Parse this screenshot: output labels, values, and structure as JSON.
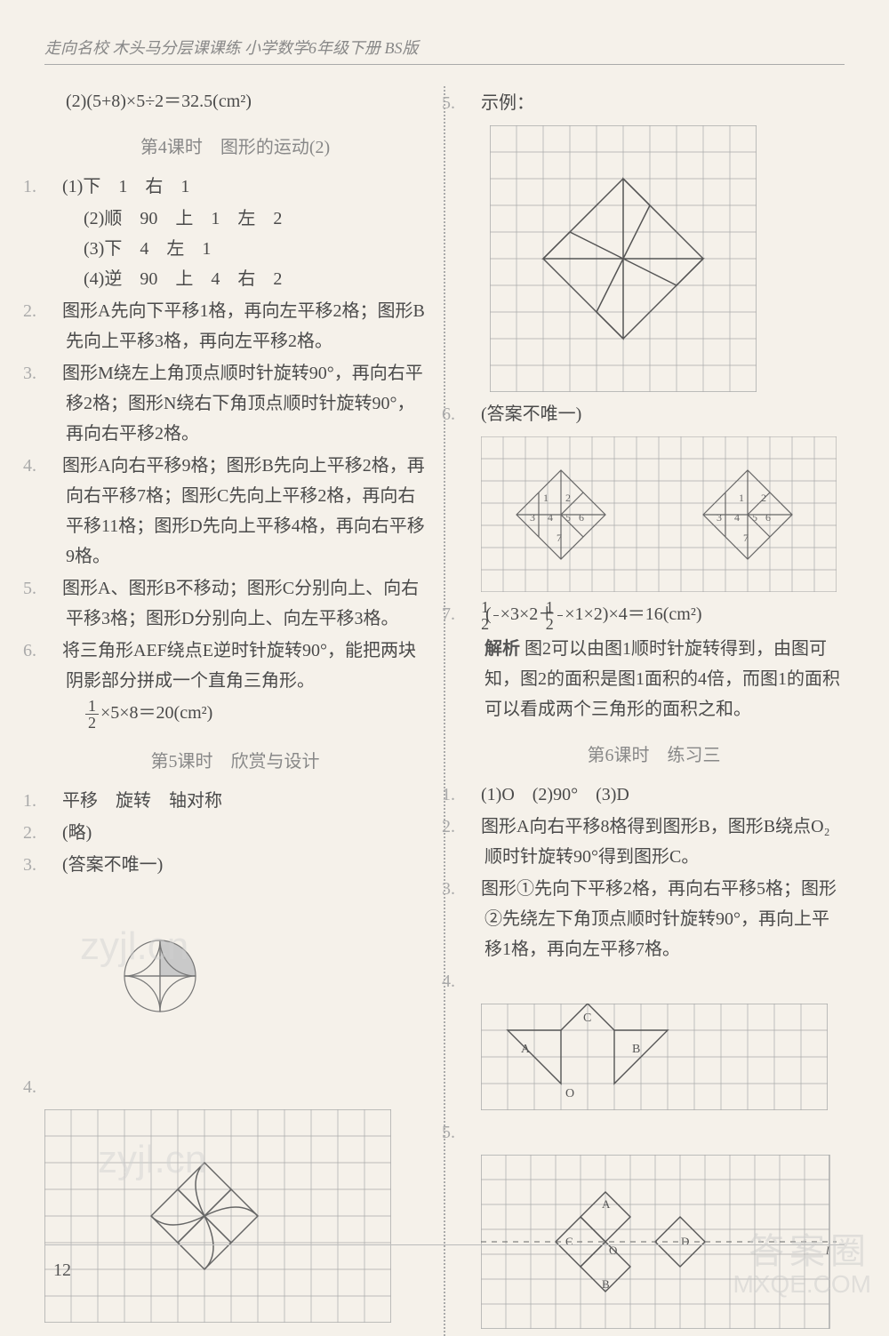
{
  "header": {
    "title": "走向名校  木头马分层课课练  小学数学6年级下册  BS版"
  },
  "left": {
    "line_top": "(2)(5+8)×5÷2＝32.5(cm²)",
    "sec4_title": "第4课时　图形的运动(2)",
    "q1": {
      "a": "(1)下　1　右　1",
      "b": "(2)顺　90　上　1　左　2",
      "c": "(3)下　4　左　1",
      "d": "(4)逆　90　上　4　右　2"
    },
    "q2": "图形A先向下平移1格，再向左平移2格；图形B先向上平移3格，再向左平移2格。",
    "q3": "图形M绕左上角顶点顺时针旋转90°，再向右平移2格；图形N绕右下角顶点顺时针旋转90°，再向右平移2格。",
    "q4": "图形A向右平移9格；图形B先向上平移2格，再向右平移7格；图形C先向上平移2格，再向右平移11格；图形D先向上平移4格，再向右平移9格。",
    "q5": "图形A、图形B不移动；图形C分别向上、向右平移3格；图形D分别向上、向左平移3格。",
    "q6": "将三角形AEF绕点E逆时针旋转90°，能把两块阴影部分拼成一个直角三角形。",
    "q6_eq_tail": "×5×8＝20(cm²)",
    "sec5_title": "第5课时　欣赏与设计",
    "s5q1": "平移　旋转　轴对称",
    "s5q2": "(略)",
    "s5q3": "(答案不唯一)",
    "grid4": {
      "cols": 13,
      "rows": 8,
      "cell": 30
    }
  },
  "right": {
    "q5label": "示例：",
    "grid5": {
      "cols": 10,
      "rows": 10,
      "cell": 30
    },
    "q6label": "(答案不唯一)",
    "grid6": {
      "cols": 16,
      "rows": 7,
      "cell": 25,
      "left_labels": [
        "1",
        "2",
        "3",
        "4",
        "5",
        "6",
        "7"
      ],
      "right_labels": [
        "1",
        "2",
        "3",
        "4",
        "5",
        "6",
        "7"
      ]
    },
    "q7_eq_tail1": "×3×2＋",
    "q7_eq_tail2": "×1×2)×4＝16(cm²)",
    "q7_explain_label": "解析",
    "q7_explain": "图2可以由图1顺时针旋转得到，由图可知，图2的面积是图1面积的4倍，而图1的面积可以看成两个三角形的面积之和。",
    "sec6_title": "第6课时　练习三",
    "s6q1": "(1)O　(2)90°　(3)D",
    "s6q2": "图形A向右平移8格得到图形B，图形B绕点O₂顺时针旋转90°得到图形C。",
    "s6q3": "图形①先向下平移2格，再向右平移5格；图形②先绕左下角顶点顺时针旋转90°，再向上平移1格，再向左平移7格。",
    "grid4r": {
      "cols": 13,
      "rows": 4,
      "cell": 30,
      "labels": {
        "A": "A",
        "B": "B",
        "C": "C",
        "O": "O"
      }
    },
    "grid5r": {
      "cols": 14,
      "rows": 7,
      "cell": 28,
      "labels": {
        "A": "A",
        "B": "B",
        "C": "C",
        "D": "D",
        "O": "O",
        "l": "l"
      }
    }
  },
  "pageNumber": "12",
  "watermark_br": {
    "l1": "答案圈",
    "l2": "MXQE.COM"
  }
}
